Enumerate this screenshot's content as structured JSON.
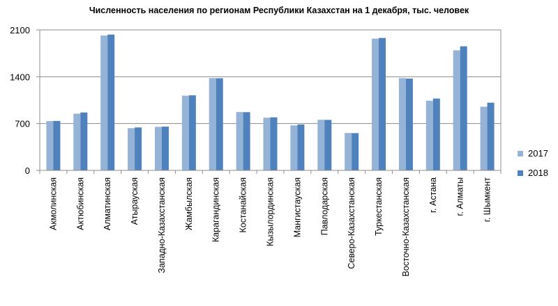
{
  "chart_data": {
    "type": "bar",
    "title": "Численность населения  по регионам  Республики  Казахстан  на 1 декабря, тыс. человек",
    "xlabel": "",
    "ylabel": "",
    "ylim": [
      0,
      2100
    ],
    "yticks": [
      0,
      700,
      1400,
      2100
    ],
    "grid": true,
    "legend_position": "right",
    "categories": [
      "Акмолинская",
      "Актюбинская",
      "Алматинская",
      "Атырауская",
      "Западно-Казахстанская",
      "Жамбылская",
      "Карагандинская",
      "Костанайская",
      "Кызылординская",
      "Мангистауская",
      "Павлодарская",
      "Северо-Казахстанская",
      "Туркестанская",
      "Восточно-Казахстанская",
      "г. Астана",
      "г. Алматы",
      "г. Шымкент"
    ],
    "series": [
      {
        "name": "2017",
        "color": "#95b3d7",
        "values": [
          737,
          848,
          2016,
          631,
          651,
          1117,
          1380,
          872,
          788,
          672,
          756,
          559,
          1970,
          1380,
          1042,
          1795,
          951
        ]
      },
      {
        "name": "2018",
        "color": "#4f81bd",
        "values": [
          739,
          866,
          2030,
          642,
          654,
          1122,
          1377,
          870,
          793,
          686,
          755,
          557,
          1980,
          1372,
          1074,
          1855,
          1012
        ]
      }
    ]
  }
}
